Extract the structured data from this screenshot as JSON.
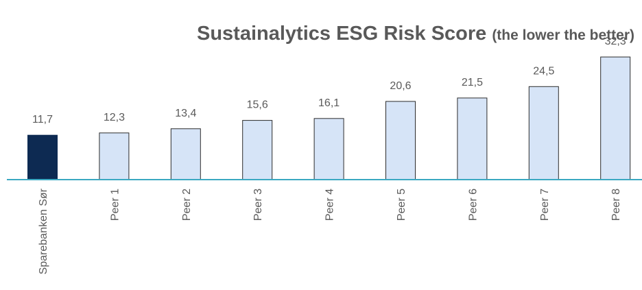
{
  "chart_data": {
    "type": "bar",
    "title": "Sustainalytics ESG Risk Score",
    "subtitle": "(the lower the better)",
    "categories": [
      "Sparebanken Sør",
      "Peer 1",
      "Peer 2",
      "Peer 3",
      "Peer 4",
      "Peer 5",
      "Peer 6",
      "Peer 7",
      "Peer 8"
    ],
    "values": [
      11.7,
      12.3,
      13.4,
      15.6,
      16.1,
      20.6,
      21.5,
      24.5,
      32.3
    ],
    "value_labels": [
      "11,7",
      "12,3",
      "13,4",
      "15,6",
      "16,1",
      "20,6",
      "21,5",
      "24,5",
      "32,3"
    ],
    "colors": [
      "#0d2a52",
      "#d6e4f7",
      "#d6e4f7",
      "#d6e4f7",
      "#d6e4f7",
      "#d6e4f7",
      "#d6e4f7",
      "#d6e4f7",
      "#d6e4f7"
    ],
    "ylim": [
      0,
      47.3
    ]
  }
}
